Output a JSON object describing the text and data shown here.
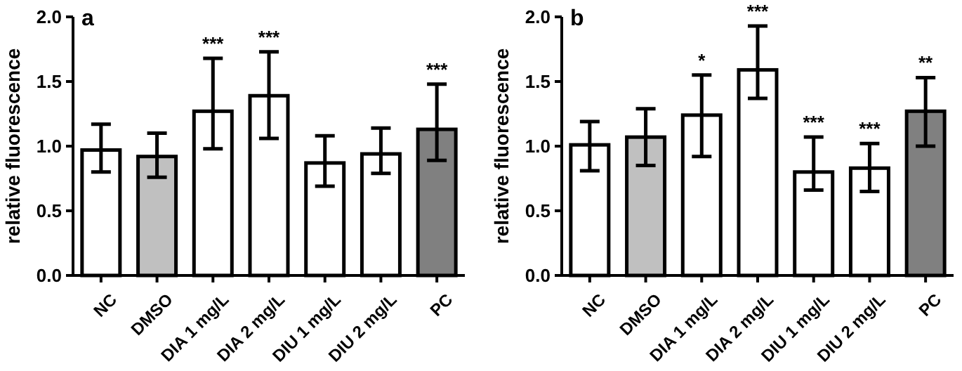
{
  "chart_data": [
    {
      "type": "bar",
      "title": "a",
      "ylabel": "relative fluorescence",
      "categories": [
        "NC",
        "DMSO",
        "DIA 1 mg/L",
        "DIA 2 mg/L",
        "DIU 1 mg/L",
        "DIU 2 mg/L",
        "PC"
      ],
      "values": [
        0.97,
        0.92,
        1.27,
        1.39,
        0.87,
        0.94,
        1.13
      ],
      "errors": [
        [
          0.8,
          1.17
        ],
        [
          0.76,
          1.1
        ],
        [
          0.98,
          1.68
        ],
        [
          1.06,
          1.73
        ],
        [
          0.69,
          1.08
        ],
        [
          0.79,
          1.14
        ],
        [
          0.89,
          1.48
        ]
      ],
      "colors": [
        "#ffffff",
        "#c0c0c0",
        "#ffffff",
        "#ffffff",
        "#ffffff",
        "#ffffff",
        "#808080"
      ],
      "ylim": [
        0,
        2
      ],
      "yticks": [
        {
          "value": 0,
          "label": "0.0"
        },
        {
          "value": 0.5,
          "label": "0.5"
        },
        {
          "value": 1,
          "label": "1.0"
        },
        {
          "value": 1.5,
          "label": "1.5"
        },
        {
          "value": 2,
          "label": "2.0"
        }
      ],
      "annotations": [
        {
          "text": "***",
          "x": "DIA 1 mg/L",
          "y": 1.68
        },
        {
          "text": "***",
          "x": "DIA 2 mg/L",
          "y": 1.73
        },
        {
          "text": "***",
          "x": "PC",
          "y": 1.48
        }
      ]
    },
    {
      "type": "bar",
      "title": "b",
      "ylabel": "relative fluorescence",
      "categories": [
        "NC",
        "DMSO",
        "DIA 1 mg/L",
        "DIA 2 mg/L",
        "DIU 1 mg/L",
        "DIU 2 mg/L",
        "PC"
      ],
      "values": [
        1.01,
        1.07,
        1.24,
        1.59,
        0.8,
        0.83,
        1.27
      ],
      "errors": [
        [
          0.81,
          1.19
        ],
        [
          0.85,
          1.29
        ],
        [
          0.92,
          1.55
        ],
        [
          1.37,
          1.93
        ],
        [
          0.66,
          1.07
        ],
        [
          0.65,
          1.02
        ],
        [
          1.0,
          1.53
        ]
      ],
      "colors": [
        "#ffffff",
        "#c0c0c0",
        "#ffffff",
        "#ffffff",
        "#ffffff",
        "#ffffff",
        "#808080"
      ],
      "ylim": [
        0,
        2
      ],
      "yticks": [
        {
          "value": 0,
          "label": "0.0"
        },
        {
          "value": 0.5,
          "label": "0.5"
        },
        {
          "value": 1,
          "label": "1.0"
        },
        {
          "value": 1.5,
          "label": "1.5"
        },
        {
          "value": 2,
          "label": "2.0"
        }
      ],
      "annotations": [
        {
          "text": "*",
          "x": "DIA 1 mg/L",
          "y": 1.55
        },
        {
          "text": "***",
          "x": "DIA 2 mg/L",
          "y": 1.93
        },
        {
          "text": "***",
          "x": "DIU 1 mg/L",
          "y": 1.07
        },
        {
          "text": "***",
          "x": "DIU 2 mg/L",
          "y": 1.02
        },
        {
          "text": "**",
          "x": "PC",
          "y": 1.53
        }
      ]
    }
  ]
}
